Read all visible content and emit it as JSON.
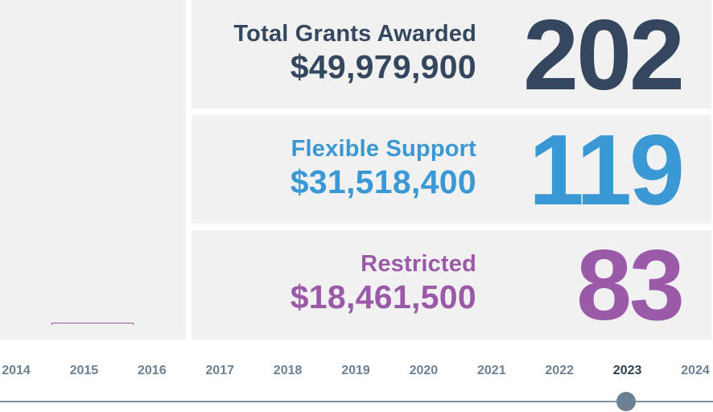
{
  "summary": {
    "total": {
      "label": "Total Grants Awarded",
      "amount": "$49,979,900",
      "count": "202",
      "color": "#34475f"
    },
    "flexible": {
      "label": "Flexible Support",
      "amount": "$31,518,400",
      "count": "119",
      "color": "#3a98d5"
    },
    "restricted": {
      "label": "Restricted",
      "amount": "$18,461,500",
      "count": "83",
      "color": "#9a5aa8"
    }
  },
  "timeline": {
    "years": [
      "2014",
      "2015",
      "2016",
      "2017",
      "2018",
      "2019",
      "2020",
      "2021",
      "2022",
      "2023",
      "2024"
    ],
    "selected": "2023"
  }
}
